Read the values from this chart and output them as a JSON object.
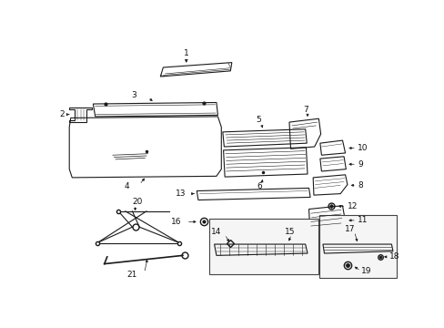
{
  "background_color": "#ffffff",
  "fig_width": 4.89,
  "fig_height": 3.6,
  "dpi": 100,
  "lc": "#1a1a1a",
  "lw": 0.8,
  "label_fs": 6.5,
  "label_color": "#111111"
}
